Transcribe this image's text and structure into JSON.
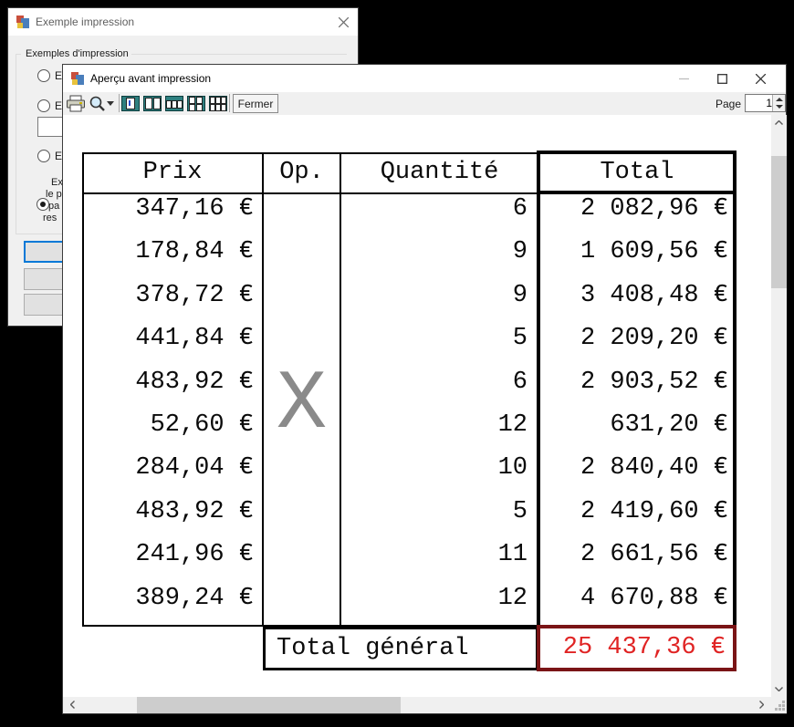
{
  "bg_window": {
    "title": "Exemple impression",
    "groupbox_label": "Exemples d'impression",
    "radio1_label": "Ex",
    "radio2_label": "Ex",
    "radio3_label": "Ex",
    "radio4_lines": [
      "Ex",
      "le p",
      "pa",
      "res"
    ]
  },
  "preview_window": {
    "title": "Aperçu avant impression",
    "fermer_label": "Fermer",
    "page_label": "Page",
    "page_value": "1"
  },
  "report": {
    "headers": {
      "prix": "Prix",
      "op": "Op.",
      "quantite": "Quantité",
      "total": "Total"
    },
    "operator": "X",
    "rows": [
      [
        "347,16 €",
        "6",
        "2 082,96 €"
      ],
      [
        "178,84 €",
        "9",
        "1 609,56 €"
      ],
      [
        "378,72 €",
        "9",
        "3 408,48 €"
      ],
      [
        "441,84 €",
        "5",
        "2 209,20 €"
      ],
      [
        "483,92 €",
        "6",
        "2 903,52 €"
      ],
      [
        "52,60 €",
        "12",
        "631,20 €"
      ],
      [
        "284,04 €",
        "10",
        "2 840,40 €"
      ],
      [
        "483,92 €",
        "5",
        "2 419,60 €"
      ],
      [
        "241,96 €",
        "11",
        "2 661,56 €"
      ],
      [
        "389,24 €",
        "12",
        "4 670,88 €"
      ]
    ],
    "grand_total_label": "Total général",
    "grand_total_value": "25 437,36 €",
    "colors": {
      "grand_total_text": "#e02424",
      "grand_total_border": "#7a1416",
      "operator_gray": "#8a8a8a"
    }
  }
}
